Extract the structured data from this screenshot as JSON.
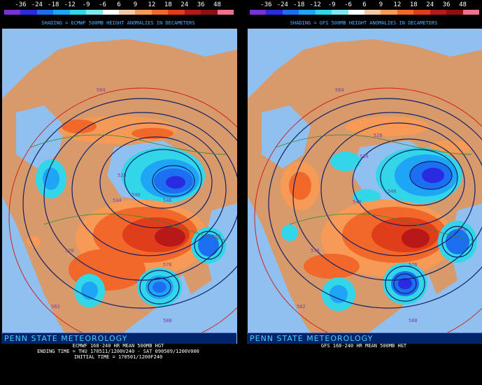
{
  "colorbar": {
    "ticks": [
      "-36",
      "-24",
      "-18",
      "-12",
      "-9",
      "-6",
      "6",
      "9",
      "12",
      "18",
      "24",
      "36",
      "48"
    ],
    "colors": [
      "#7b2fd6",
      "#2a2ae0",
      "#1c6ff0",
      "#1ea5f5",
      "#33d6e8",
      "#7fe7f0",
      "#ffffff",
      "#f8c9a0",
      "#f79a55",
      "#f2672a",
      "#e03d1a",
      "#b81818",
      "#8c1010",
      "#f07090"
    ]
  },
  "left": {
    "shading_label": "SHADING = ECMWF 500MB HEIGHT ANOMALIES IN DECAMETERS",
    "banner": "PENN STATE METEOROLOGY",
    "caption_1": "ECMWF 168-240 HR MEAN 500MB HGT",
    "caption_2": "ENDING TIME = THU 170511/1200V240 - SAT 090509/1200V000",
    "caption_3": "INITIAL TIME = 170501/1200F240",
    "contour_labels": [
      "528",
      "534",
      "540",
      "546",
      "558",
      "564",
      "570",
      "576",
      "582",
      "588"
    ]
  },
  "right": {
    "shading_label": "SHADING = GFS 500MB HEIGHT ANOMALIES IN DECAMETERS",
    "banner": "PENN STATE METEOROLOGY",
    "caption_1": "GFS 168-240 HR MEAN 500MB HGT",
    "contour_labels": [
      "528",
      "534",
      "540",
      "546",
      "558",
      "564",
      "570",
      "576",
      "582",
      "588"
    ]
  },
  "palette": {
    "ocean": "#8fc0f0",
    "land": "#d89a6a"
  }
}
